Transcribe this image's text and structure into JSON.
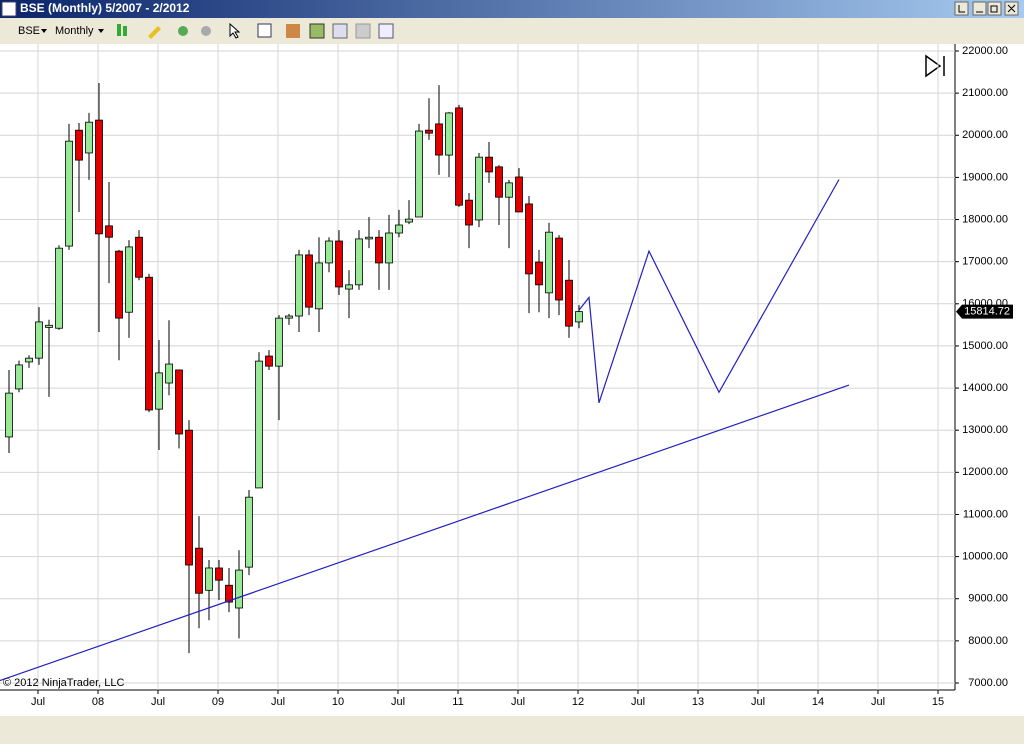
{
  "window": {
    "title": "BSE (Monthly)  5/2007 - 2/2012"
  },
  "toolbar": {
    "symbol": "BSE",
    "interval": "Monthly"
  },
  "chart_data": {
    "type": "candlestick",
    "x": [
      "2007-05",
      "2007-06",
      "2007-07",
      "2007-08",
      "2007-09",
      "2007-10",
      "2007-11",
      "2007-12",
      "2008-01",
      "2008-02",
      "2008-03",
      "2008-04",
      "2008-05",
      "2008-06",
      "2008-07",
      "2008-08",
      "2008-09",
      "2008-10",
      "2008-11",
      "2008-12",
      "2009-01",
      "2009-02",
      "2009-03",
      "2009-04",
      "2009-05",
      "2009-06",
      "2009-07",
      "2009-08",
      "2009-09",
      "2009-10",
      "2009-11",
      "2009-12",
      "2010-01",
      "2010-02",
      "2010-03",
      "2010-04",
      "2010-05",
      "2010-06",
      "2010-07",
      "2010-08",
      "2010-09",
      "2010-10",
      "2010-11",
      "2010-12",
      "2011-01",
      "2011-02",
      "2011-03",
      "2011-04",
      "2011-05",
      "2011-06",
      "2011-07",
      "2011-08",
      "2011-09",
      "2011-10",
      "2011-11",
      "2011-12",
      "2012-01",
      "2012-02"
    ],
    "open": [
      12840,
      13980,
      14620,
      14710,
      15440,
      15420,
      17370,
      20120,
      19580,
      20360,
      17850,
      17250,
      15800,
      17580,
      16630,
      13500,
      14120,
      14430,
      13000,
      10200,
      9200,
      9730,
      9320,
      8780,
      9750,
      11630,
      14760,
      14520,
      15660,
      15710,
      17160,
      15880,
      16970,
      17490,
      16350,
      16450,
      17540,
      17580,
      16970,
      17680,
      17940,
      18060,
      20120,
      20270,
      19530,
      20650,
      18460,
      17990,
      19480,
      19250,
      18530,
      19010,
      18370,
      16990,
      16260,
      17560,
      16560,
      15570
    ],
    "high": [
      14430,
      14650,
      14780,
      15920,
      15620,
      17390,
      20270,
      20290,
      20530,
      21240,
      18890,
      17280,
      17510,
      17750,
      16710,
      15140,
      15610,
      14430,
      13240,
      10960,
      9920,
      9920,
      9730,
      10150,
      11580,
      14850,
      14900,
      15730,
      15760,
      17280,
      17280,
      17580,
      17580,
      17750,
      16800,
      17750,
      18060,
      17750,
      18110,
      18230,
      18460,
      20270,
      20880,
      21190,
      20550,
      20720,
      18630,
      19580,
      19840,
      19290,
      18940,
      19220,
      18560,
      17280,
      17920,
      17630,
      17040,
      15970
    ],
    "low": [
      12460,
      13900,
      14480,
      14550,
      13790,
      15380,
      17280,
      18180,
      18940,
      15330,
      16490,
      14660,
      15190,
      16560,
      13430,
      12530,
      13830,
      12570,
      7710,
      8300,
      8490,
      8970,
      8680,
      8060,
      9560,
      11630,
      14430,
      13240,
      15500,
      15330,
      15730,
      15330,
      16750,
      16210,
      15660,
      16330,
      17320,
      16330,
      16330,
      17580,
      17890,
      18060,
      19890,
      19060,
      19010,
      18300,
      17320,
      17820,
      18870,
      17870,
      17320,
      18180,
      15780,
      15800,
      15660,
      15730,
      15190,
      15420
    ],
    "close": [
      13880,
      14550,
      14710,
      15570,
      15490,
      17320,
      19860,
      19410,
      20310,
      17660,
      17580,
      15660,
      17350,
      16630,
      13480,
      14360,
      14570,
      12910,
      9800,
      9130,
      9730,
      9440,
      8920,
      9680,
      11410,
      14640,
      14520,
      15660,
      15710,
      17160,
      15920,
      16970,
      17490,
      16400,
      16450,
      17540,
      17580,
      16970,
      17680,
      17870,
      18010,
      20100,
      20050,
      19530,
      20530,
      18340,
      17870,
      19480,
      19130,
      18530,
      18870,
      18180,
      16710,
      16450,
      17700,
      16090,
      15470,
      15814.72
    ],
    "up_color": "#98e898",
    "down_color": "#e00000",
    "xlim": [
      "2007-04",
      "2015-03"
    ],
    "xticks": [
      {
        "value": "2007-07",
        "label": "Jul"
      },
      {
        "value": "2008-01",
        "label": "08"
      },
      {
        "value": "2008-07",
        "label": "Jul"
      },
      {
        "value": "2009-01",
        "label": "09"
      },
      {
        "value": "2009-07",
        "label": "Jul"
      },
      {
        "value": "2010-01",
        "label": "10"
      },
      {
        "value": "2010-07",
        "label": "Jul"
      },
      {
        "value": "2011-01",
        "label": "11"
      },
      {
        "value": "2011-07",
        "label": "Jul"
      },
      {
        "value": "2012-01",
        "label": "12"
      },
      {
        "value": "2012-07",
        "label": "Jul"
      },
      {
        "value": "2013-01",
        "label": "13"
      },
      {
        "value": "2013-07",
        "label": "Jul"
      },
      {
        "value": "2014-01",
        "label": "14"
      },
      {
        "value": "2014-07",
        "label": "Jul"
      },
      {
        "value": "2015-01",
        "label": "15"
      }
    ],
    "ylim": [
      7000,
      22000
    ],
    "yticks": [
      {
        "value": 7000,
        "label": "7000.00"
      },
      {
        "value": 8000,
        "label": "8000.00"
      },
      {
        "value": 9000,
        "label": "9000.00"
      },
      {
        "value": 10000,
        "label": "10000.00"
      },
      {
        "value": 11000,
        "label": "11000.00"
      },
      {
        "value": 12000,
        "label": "12000.00"
      },
      {
        "value": 13000,
        "label": "13000.00"
      },
      {
        "value": 14000,
        "label": "14000.00"
      },
      {
        "value": 15000,
        "label": "15000.00"
      },
      {
        "value": 16000,
        "label": "16000.00"
      },
      {
        "value": 17000,
        "label": "17000.00"
      },
      {
        "value": 18000,
        "label": "18000.00"
      },
      {
        "value": 19000,
        "label": "19000.00"
      },
      {
        "value": 20000,
        "label": "20000.00"
      },
      {
        "value": 21000,
        "label": "21000.00"
      },
      {
        "value": 22000,
        "label": "22000.00"
      }
    ],
    "grid": true,
    "drawings": [
      {
        "type": "line",
        "color": "#2020c0",
        "x": [
          "2007-04",
          "2014-05"
        ],
        "y": [
          7050,
          14070
        ]
      },
      {
        "type": "polyline",
        "color": "#2020c0",
        "x": [
          "2012-02",
          "2012-03",
          "2012-04",
          "2012-09",
          "2013-04",
          "2014-04"
        ],
        "y": [
          15850,
          16150,
          13650,
          17250,
          13900,
          18950
        ]
      }
    ],
    "watermark": "© 2012 NinjaTrader, LLC"
  }
}
